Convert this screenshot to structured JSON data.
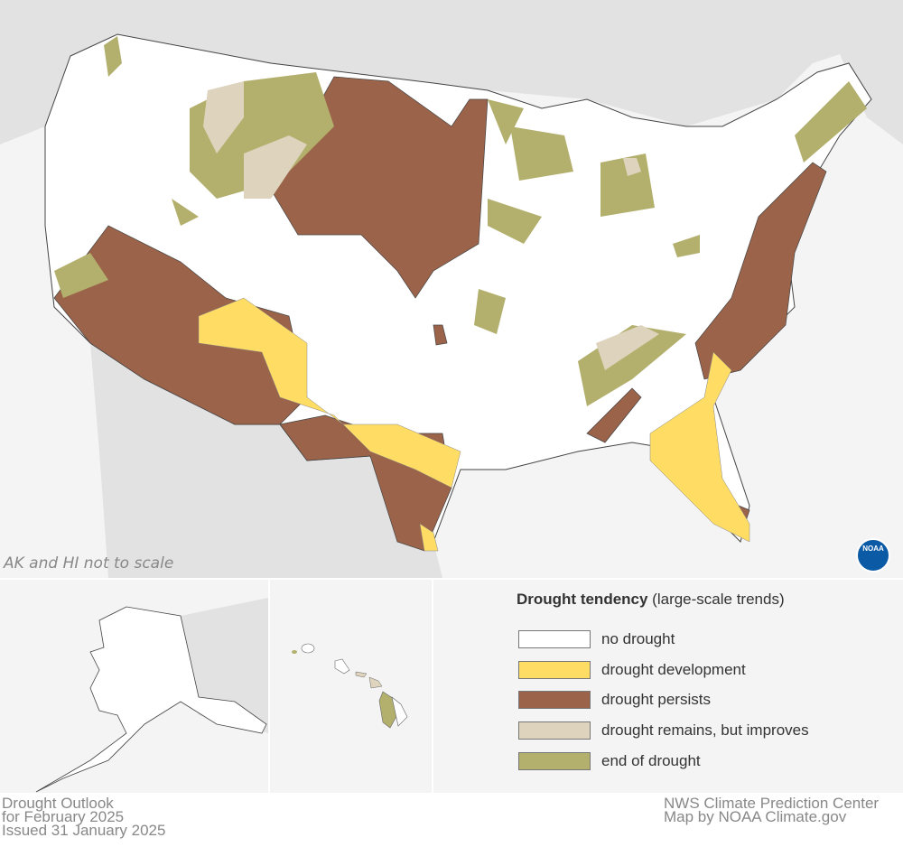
{
  "map_note": "AK and HI not to scale",
  "legend": {
    "title_bold": "Drought tendency",
    "title_rest": " (large-scale trends)",
    "items": [
      {
        "label": "no drought",
        "color": "#ffffff"
      },
      {
        "label": "drought development",
        "color": "#ffdc64"
      },
      {
        "label": "drought persists",
        "color": "#9b6349"
      },
      {
        "label": "drought remains, but improves",
        "color": "#ded3bd"
      },
      {
        "label": "end of drought",
        "color": "#b3b06e"
      }
    ]
  },
  "footer": {
    "left": [
      "Drought Outlook",
      "for February 2025",
      "Issued 31 January 2025"
    ],
    "right": [
      "NWS Climate Prediction Center",
      "Map by NOAA Climate.gov"
    ]
  },
  "logo": "NOAA"
}
